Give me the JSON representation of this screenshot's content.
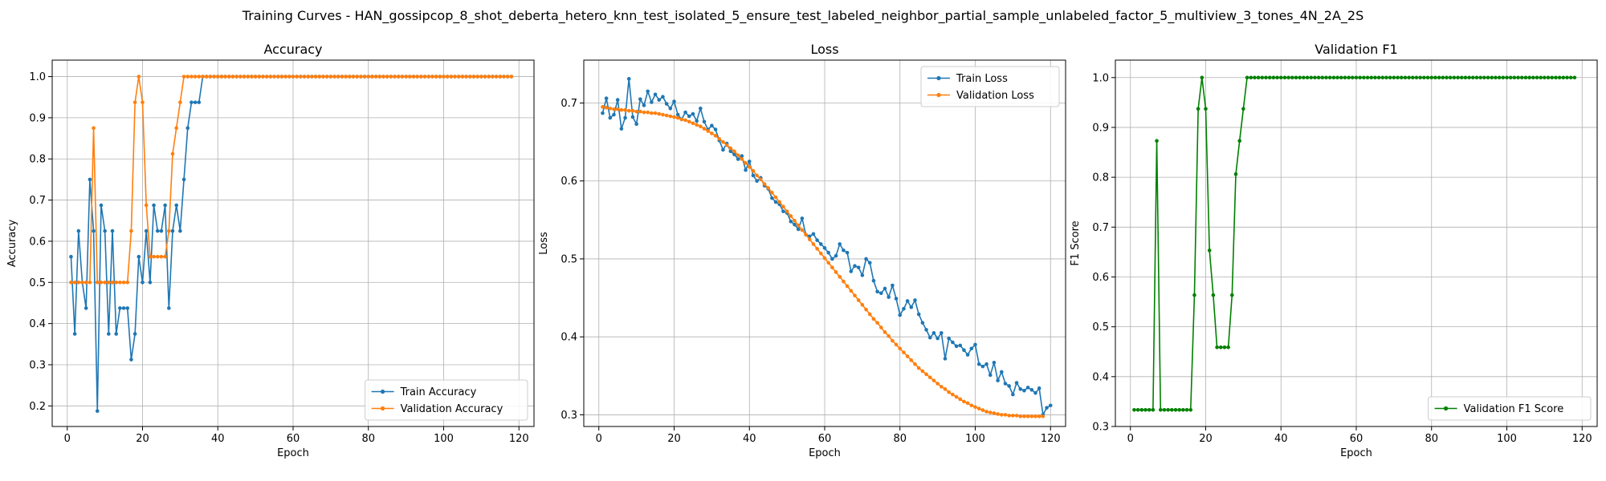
{
  "figure": {
    "suptitle": "Training Curves - HAN_gossipcop_8_shot_deberta_hetero_knn_test_isolated_5_ensure_test_labeled_neighbor_partial_sample_unlabeled_factor_5_multiview_3_tones_4N_2A_2S"
  },
  "chart_data": [
    {
      "type": "line",
      "title": "Accuracy",
      "xlabel": "Epoch",
      "ylabel": "Accuracy",
      "xlim": [
        -4,
        124
      ],
      "ylim": [
        0.15,
        1.04
      ],
      "xticks": [
        0,
        20,
        40,
        60,
        80,
        100,
        120
      ],
      "yticks": [
        0.2,
        0.3,
        0.4,
        0.5,
        0.6,
        0.7,
        0.8,
        0.9,
        1.0
      ],
      "ytick_labels": [
        "0.2",
        "0.3",
        "0.4",
        "0.5",
        "0.6",
        "0.7",
        "0.8",
        "0.9",
        "1.0"
      ],
      "grid": true,
      "legend": "lower-right",
      "series": [
        {
          "name": "Train Accuracy",
          "color": "#1f77b4",
          "x_start": 1,
          "values": [
            0.5625,
            0.375,
            0.625,
            0.5,
            0.4375,
            0.75,
            0.625,
            0.1875,
            0.6875,
            0.625,
            0.375,
            0.625,
            0.375,
            0.4375,
            0.4375,
            0.4375,
            0.3125,
            0.375,
            0.5625,
            0.5,
            0.625,
            0.5,
            0.6875,
            0.625,
            0.625,
            0.6875,
            0.4375,
            0.625,
            0.6875,
            0.625,
            0.75,
            0.875,
            0.9375,
            0.9375,
            0.9375,
            1.0,
            1.0,
            1.0,
            1.0,
            1.0,
            1.0,
            1.0,
            1.0,
            1.0,
            1.0,
            1.0,
            1.0,
            1.0,
            1.0,
            1.0,
            1.0,
            1.0,
            1.0,
            1.0,
            1.0,
            1.0,
            1.0,
            1.0,
            1.0,
            1.0,
            1.0,
            1.0,
            1.0,
            1.0,
            1.0,
            1.0,
            1.0,
            1.0,
            1.0,
            1.0,
            1.0,
            1.0,
            1.0,
            1.0,
            1.0,
            1.0,
            1.0,
            1.0,
            1.0,
            1.0,
            1.0,
            1.0,
            1.0,
            1.0,
            1.0,
            1.0,
            1.0,
            1.0,
            1.0,
            1.0,
            1.0,
            1.0,
            1.0,
            1.0,
            1.0,
            1.0,
            1.0,
            1.0,
            1.0,
            1.0,
            1.0,
            1.0,
            1.0,
            1.0,
            1.0,
            1.0,
            1.0,
            1.0,
            1.0,
            1.0,
            1.0,
            1.0,
            1.0,
            1.0,
            1.0,
            1.0,
            1.0,
            1.0
          ]
        },
        {
          "name": "Validation Accuracy",
          "color": "#ff7f0e",
          "x_start": 1,
          "values": [
            0.5,
            0.5,
            0.5,
            0.5,
            0.5,
            0.5,
            0.875,
            0.5,
            0.5,
            0.5,
            0.5,
            0.5,
            0.5,
            0.5,
            0.5,
            0.5,
            0.625,
            0.9375,
            1.0,
            0.9375,
            0.6875,
            0.5625,
            0.5625,
            0.5625,
            0.5625,
            0.5625,
            0.625,
            0.8125,
            0.875,
            0.9375,
            1.0,
            1.0,
            1.0,
            1.0,
            1.0,
            1.0,
            1.0,
            1.0,
            1.0,
            1.0,
            1.0,
            1.0,
            1.0,
            1.0,
            1.0,
            1.0,
            1.0,
            1.0,
            1.0,
            1.0,
            1.0,
            1.0,
            1.0,
            1.0,
            1.0,
            1.0,
            1.0,
            1.0,
            1.0,
            1.0,
            1.0,
            1.0,
            1.0,
            1.0,
            1.0,
            1.0,
            1.0,
            1.0,
            1.0,
            1.0,
            1.0,
            1.0,
            1.0,
            1.0,
            1.0,
            1.0,
            1.0,
            1.0,
            1.0,
            1.0,
            1.0,
            1.0,
            1.0,
            1.0,
            1.0,
            1.0,
            1.0,
            1.0,
            1.0,
            1.0,
            1.0,
            1.0,
            1.0,
            1.0,
            1.0,
            1.0,
            1.0,
            1.0,
            1.0,
            1.0,
            1.0,
            1.0,
            1.0,
            1.0,
            1.0,
            1.0,
            1.0,
            1.0,
            1.0,
            1.0,
            1.0,
            1.0,
            1.0,
            1.0,
            1.0,
            1.0,
            1.0,
            1.0
          ]
        }
      ]
    },
    {
      "type": "line",
      "title": "Loss",
      "xlabel": "Epoch",
      "ylabel": "Loss",
      "xlim": [
        -4,
        124
      ],
      "ylim": [
        0.285,
        0.755
      ],
      "xticks": [
        0,
        20,
        40,
        60,
        80,
        100,
        120
      ],
      "yticks": [
        0.3,
        0.4,
        0.5,
        0.6,
        0.7
      ],
      "ytick_labels": [
        "0.3",
        "0.4",
        "0.5",
        "0.6",
        "0.7"
      ],
      "grid": true,
      "legend": "upper-right",
      "series": [
        {
          "name": "Train Loss",
          "color": "#1f77b4",
          "x_start": 1,
          "values": [
            0.687,
            0.706,
            0.681,
            0.685,
            0.704,
            0.667,
            0.681,
            0.731,
            0.682,
            0.673,
            0.705,
            0.697,
            0.715,
            0.701,
            0.711,
            0.704,
            0.708,
            0.699,
            0.693,
            0.702,
            0.685,
            0.679,
            0.688,
            0.683,
            0.686,
            0.677,
            0.693,
            0.676,
            0.666,
            0.671,
            0.666,
            0.652,
            0.64,
            0.648,
            0.638,
            0.634,
            0.628,
            0.632,
            0.614,
            0.625,
            0.607,
            0.6,
            0.604,
            0.594,
            0.59,
            0.578,
            0.573,
            0.57,
            0.561,
            0.559,
            0.548,
            0.544,
            0.538,
            0.552,
            0.531,
            0.529,
            0.532,
            0.524,
            0.519,
            0.514,
            0.508,
            0.5,
            0.504,
            0.519,
            0.511,
            0.508,
            0.484,
            0.491,
            0.489,
            0.479,
            0.5,
            0.495,
            0.472,
            0.458,
            0.456,
            0.462,
            0.451,
            0.466,
            0.449,
            0.428,
            0.436,
            0.446,
            0.438,
            0.447,
            0.429,
            0.418,
            0.409,
            0.399,
            0.405,
            0.398,
            0.405,
            0.372,
            0.398,
            0.393,
            0.388,
            0.389,
            0.383,
            0.377,
            0.385,
            0.39,
            0.365,
            0.362,
            0.365,
            0.351,
            0.367,
            0.344,
            0.355,
            0.34,
            0.337,
            0.326,
            0.341,
            0.333,
            0.331,
            0.335,
            0.332,
            0.328,
            0.334,
            0.3,
            0.309,
            0.312
          ]
        },
        {
          "name": "Validation Loss",
          "color": "#ff7f0e",
          "x_start": 1,
          "values": [
            0.695,
            0.694,
            0.693,
            0.692,
            0.692,
            0.691,
            0.691,
            0.69,
            0.69,
            0.689,
            0.689,
            0.688,
            0.688,
            0.687,
            0.687,
            0.686,
            0.685,
            0.684,
            0.683,
            0.682,
            0.681,
            0.679,
            0.678,
            0.676,
            0.674,
            0.672,
            0.67,
            0.667,
            0.664,
            0.661,
            0.658,
            0.654,
            0.65,
            0.646,
            0.642,
            0.638,
            0.633,
            0.628,
            0.623,
            0.618,
            0.613,
            0.607,
            0.602,
            0.596,
            0.591,
            0.585,
            0.579,
            0.573,
            0.567,
            0.561,
            0.555,
            0.549,
            0.543,
            0.537,
            0.531,
            0.525,
            0.519,
            0.513,
            0.507,
            0.501,
            0.495,
            0.489,
            0.483,
            0.477,
            0.471,
            0.465,
            0.459,
            0.453,
            0.447,
            0.441,
            0.435,
            0.429,
            0.423,
            0.418,
            0.412,
            0.406,
            0.401,
            0.395,
            0.39,
            0.385,
            0.38,
            0.375,
            0.37,
            0.365,
            0.36,
            0.356,
            0.352,
            0.348,
            0.344,
            0.34,
            0.336,
            0.333,
            0.329,
            0.326,
            0.323,
            0.32,
            0.317,
            0.315,
            0.312,
            0.31,
            0.308,
            0.306,
            0.304,
            0.303,
            0.302,
            0.301,
            0.3,
            0.3,
            0.299,
            0.299,
            0.299,
            0.298,
            0.298,
            0.298,
            0.298,
            0.298,
            0.298,
            0.298
          ]
        }
      ]
    },
    {
      "type": "line",
      "title": "Validation F1",
      "xlabel": "Epoch",
      "ylabel": "F1 Score",
      "xlim": [
        -4,
        124
      ],
      "ylim": [
        0.3,
        1.035
      ],
      "xticks": [
        0,
        20,
        40,
        60,
        80,
        100,
        120
      ],
      "yticks": [
        0.3,
        0.4,
        0.5,
        0.6,
        0.7,
        0.8,
        0.9,
        1.0
      ],
      "ytick_labels": [
        "0.3",
        "0.4",
        "0.5",
        "0.6",
        "0.7",
        "0.8",
        "0.9",
        "1.0"
      ],
      "grid": true,
      "legend": "lower-right",
      "series": [
        {
          "name": "Validation F1 Score",
          "color": "#008000",
          "x_start": 1,
          "values": [
            0.3333,
            0.3333,
            0.3333,
            0.3333,
            0.3333,
            0.3333,
            0.873,
            0.3333,
            0.3333,
            0.3333,
            0.3333,
            0.3333,
            0.3333,
            0.3333,
            0.3333,
            0.3333,
            0.5636,
            0.9373,
            1.0,
            0.9373,
            0.6532,
            0.5636,
            0.4589,
            0.4589,
            0.4589,
            0.4589,
            0.5636,
            0.8063,
            0.873,
            0.9373,
            1.0,
            1.0,
            1.0,
            1.0,
            1.0,
            1.0,
            1.0,
            1.0,
            1.0,
            1.0,
            1.0,
            1.0,
            1.0,
            1.0,
            1.0,
            1.0,
            1.0,
            1.0,
            1.0,
            1.0,
            1.0,
            1.0,
            1.0,
            1.0,
            1.0,
            1.0,
            1.0,
            1.0,
            1.0,
            1.0,
            1.0,
            1.0,
            1.0,
            1.0,
            1.0,
            1.0,
            1.0,
            1.0,
            1.0,
            1.0,
            1.0,
            1.0,
            1.0,
            1.0,
            1.0,
            1.0,
            1.0,
            1.0,
            1.0,
            1.0,
            1.0,
            1.0,
            1.0,
            1.0,
            1.0,
            1.0,
            1.0,
            1.0,
            1.0,
            1.0,
            1.0,
            1.0,
            1.0,
            1.0,
            1.0,
            1.0,
            1.0,
            1.0,
            1.0,
            1.0,
            1.0,
            1.0,
            1.0,
            1.0,
            1.0,
            1.0,
            1.0,
            1.0,
            1.0,
            1.0,
            1.0,
            1.0,
            1.0,
            1.0,
            1.0,
            1.0,
            1.0,
            1.0
          ]
        }
      ]
    }
  ]
}
